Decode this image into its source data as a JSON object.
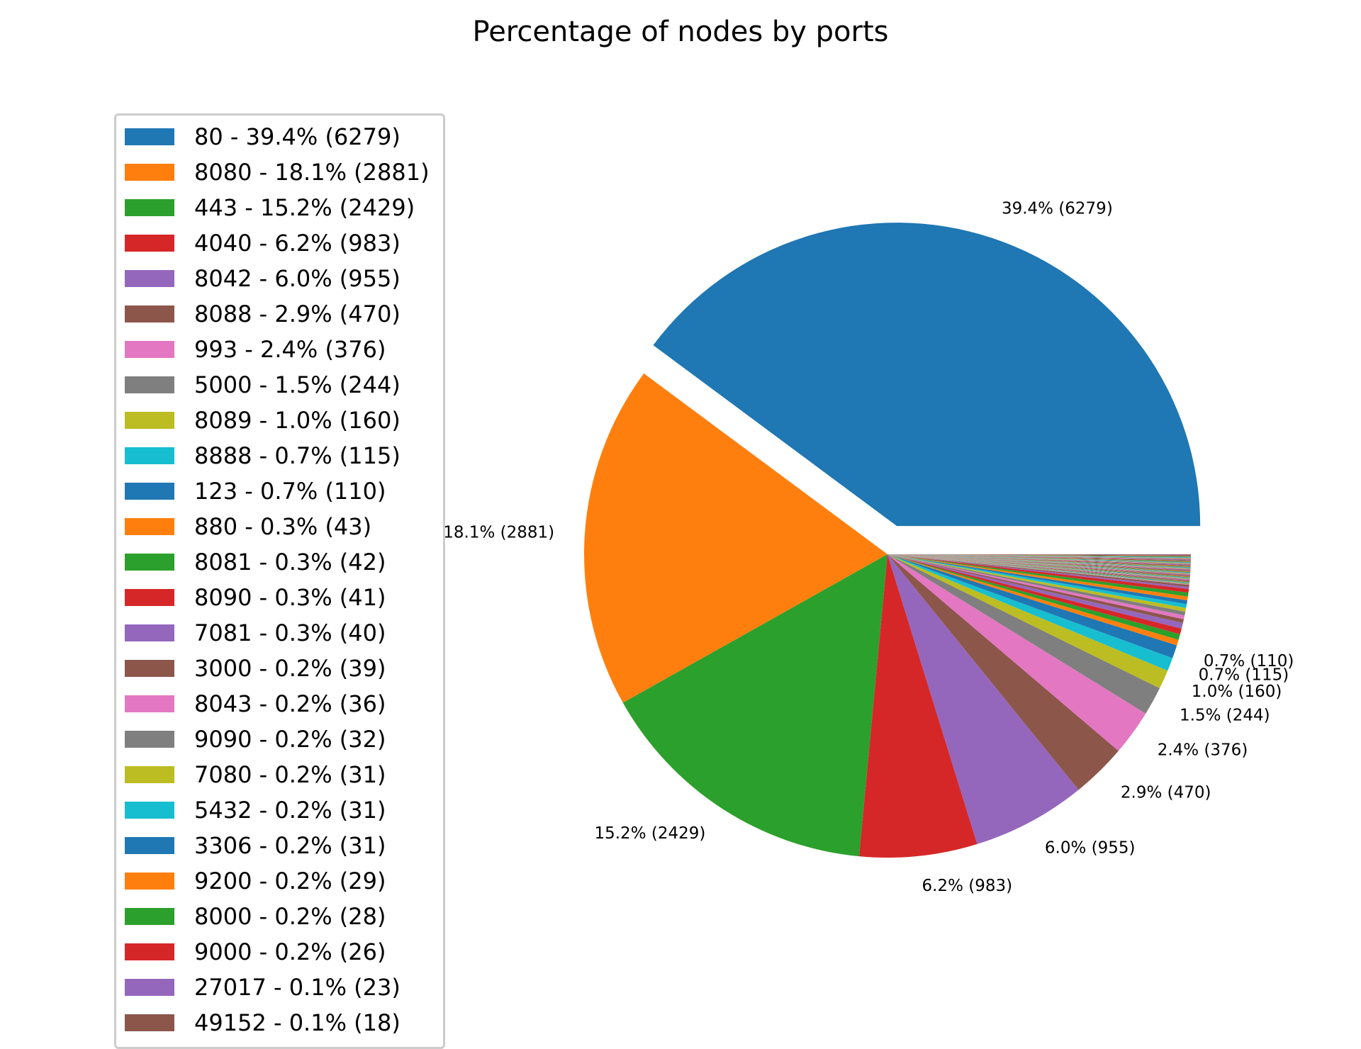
{
  "chart_data": {
    "type": "pie",
    "title": "Percentage of nodes by ports",
    "legend_position": "left",
    "explode": [
      0
    ],
    "slices": [
      {
        "port": "80",
        "percent": 39.4,
        "count": 6279,
        "color": "#1f77b4",
        "legend": "80 - 39.4% (6279)",
        "label": "39.4% (6279)"
      },
      {
        "port": "8080",
        "percent": 18.1,
        "count": 2881,
        "color": "#ff7f0e",
        "legend": "8080 - 18.1% (2881)",
        "label": "18.1% (2881)"
      },
      {
        "port": "443",
        "percent": 15.2,
        "count": 2429,
        "color": "#2ca02c",
        "legend": "443 - 15.2% (2429)",
        "label": "15.2% (2429)"
      },
      {
        "port": "4040",
        "percent": 6.2,
        "count": 983,
        "color": "#d62728",
        "legend": "4040 - 6.2% (983)",
        "label": "6.2% (983)"
      },
      {
        "port": "8042",
        "percent": 6.0,
        "count": 955,
        "color": "#9467bd",
        "legend": "8042 - 6.0% (955)",
        "label": "6.0% (955)"
      },
      {
        "port": "8088",
        "percent": 2.9,
        "count": 470,
        "color": "#8c564b",
        "legend": "8088 - 2.9% (470)",
        "label": "2.9% (470)"
      },
      {
        "port": "993",
        "percent": 2.4,
        "count": 376,
        "color": "#e377c2",
        "legend": "993 - 2.4% (376)",
        "label": "2.4% (376)"
      },
      {
        "port": "5000",
        "percent": 1.5,
        "count": 244,
        "color": "#7f7f7f",
        "legend": "5000 - 1.5% (244)",
        "label": "1.5% (244)"
      },
      {
        "port": "8089",
        "percent": 1.0,
        "count": 160,
        "color": "#bcbd22",
        "legend": "8089 - 1.0% (160)",
        "label": "1.0% (160)"
      },
      {
        "port": "8888",
        "percent": 0.7,
        "count": 115,
        "color": "#17becf",
        "legend": "8888 - 0.7% (115)",
        "label": "0.7% (115)"
      },
      {
        "port": "123",
        "percent": 0.7,
        "count": 110,
        "color": "#1f77b4",
        "legend": "123 - 0.7% (110)",
        "label": "0.7% (110)"
      },
      {
        "port": "880",
        "percent": 0.3,
        "count": 43,
        "color": "#ff7f0e",
        "legend": "880 - 0.3% (43)",
        "label": ""
      },
      {
        "port": "8081",
        "percent": 0.3,
        "count": 42,
        "color": "#2ca02c",
        "legend": "8081 - 0.3% (42)",
        "label": ""
      },
      {
        "port": "8090",
        "percent": 0.3,
        "count": 41,
        "color": "#d62728",
        "legend": "8090 - 0.3% (41)",
        "label": ""
      },
      {
        "port": "7081",
        "percent": 0.3,
        "count": 40,
        "color": "#9467bd",
        "legend": "7081 - 0.3% (40)",
        "label": ""
      },
      {
        "port": "3000",
        "percent": 0.2,
        "count": 39,
        "color": "#8c564b",
        "legend": "3000 - 0.2% (39)",
        "label": ""
      },
      {
        "port": "8043",
        "percent": 0.2,
        "count": 36,
        "color": "#e377c2",
        "legend": "8043 - 0.2% (36)",
        "label": ""
      },
      {
        "port": "9090",
        "percent": 0.2,
        "count": 32,
        "color": "#7f7f7f",
        "legend": "9090 - 0.2% (32)",
        "label": ""
      },
      {
        "port": "7080",
        "percent": 0.2,
        "count": 31,
        "color": "#bcbd22",
        "legend": "7080 - 0.2% (31)",
        "label": ""
      },
      {
        "port": "5432",
        "percent": 0.2,
        "count": 31,
        "color": "#17becf",
        "legend": "5432 - 0.2% (31)",
        "label": ""
      },
      {
        "port": "3306",
        "percent": 0.2,
        "count": 31,
        "color": "#1f77b4",
        "legend": "3306 - 0.2% (31)",
        "label": ""
      },
      {
        "port": "9200",
        "percent": 0.2,
        "count": 29,
        "color": "#ff7f0e",
        "legend": "9200 - 0.2% (29)",
        "label": ""
      },
      {
        "port": "8000",
        "percent": 0.2,
        "count": 28,
        "color": "#2ca02c",
        "legend": "8000 - 0.2% (28)",
        "label": ""
      },
      {
        "port": "9000",
        "percent": 0.2,
        "count": 26,
        "color": "#d62728",
        "legend": "9000 - 0.2% (26)",
        "label": ""
      },
      {
        "port": "27017",
        "percent": 0.1,
        "count": 23,
        "color": "#9467bd",
        "legend": "27017 - 0.1% (23)",
        "label": ""
      },
      {
        "port": "49152",
        "percent": 0.1,
        "count": 18,
        "color": "#8c564b",
        "legend": "49152 - 0.1% (18)",
        "label": ""
      }
    ],
    "remaining_slices_color_cycle": [
      "#1f77b4",
      "#ff7f0e",
      "#2ca02c",
      "#d62728",
      "#9467bd",
      "#8c564b",
      "#e377c2",
      "#7f7f7f",
      "#bcbd22",
      "#17becf"
    ],
    "remaining_slices_percent_total": 1.6
  }
}
